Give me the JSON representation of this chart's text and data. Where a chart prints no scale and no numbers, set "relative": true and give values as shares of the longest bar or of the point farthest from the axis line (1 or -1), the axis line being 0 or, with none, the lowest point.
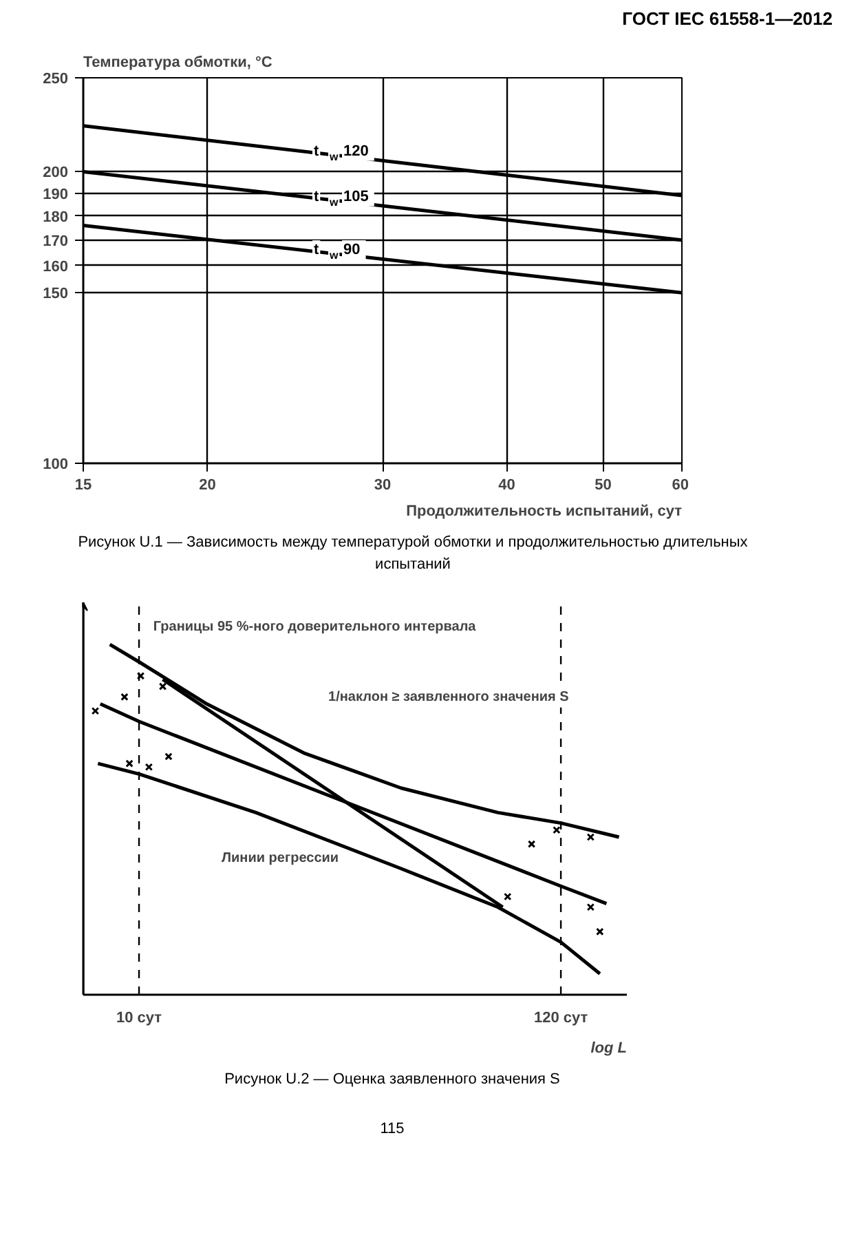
{
  "chart_data": [
    {
      "type": "line",
      "title": "ГОСТ IEC 61558-1—2012",
      "ylabel": "Температура обмотки, °C",
      "xlabel": "Продолжительность испытаний, сут",
      "log": "xy",
      "xlim": [
        15,
        60
      ],
      "ylim": [
        100,
        250
      ],
      "xticks": [
        15,
        20,
        30,
        40,
        50,
        60
      ],
      "yticks": [
        100,
        150,
        160,
        170,
        180,
        190,
        200,
        250
      ],
      "grid": true,
      "marker": "none",
      "line_style": "solid",
      "x": [
        15,
        60
      ],
      "series": [
        {
          "name": "t$_{w}$ 120",
          "color": "#000000",
          "values": [
            223,
            189
          ]
        },
        {
          "name": "t$_{w}$ 105",
          "color": "#000000",
          "values": [
            200,
            170
          ]
        },
        {
          "name": "t$_{w}$ 90",
          "color": "#000000",
          "values": [
            176,
            150
          ]
        }
      ],
      "annotations": [
        "Рисунок U.1 — Зависимость между температурой обмотки и продолжительностью длительных испытаний"
      ]
    },
    {
      "type": "line",
      "relative": true,
      "log": "x",
      "xlim": [
        7.2,
        177
      ],
      "xlabel": "log L",
      "xticks": [
        {
          "value": 10,
          "label": "10 сут"
        },
        {
          "value": 120,
          "label": "120 сут"
        }
      ],
      "tick_labels": "x",
      "grid": false,
      "series": [
        {
          "color": "#000000",
          "x": [
            8.42,
            10,
            14.9,
            26.4,
            46.8,
            82.8,
            120,
            169
          ],
          "values": [
            1.0,
            0.95,
            0.83,
            0.69,
            0.59,
            0.52,
            0.49,
            0.45
          ]
        },
        {
          "color": "#000000",
          "x": [
            7.96,
            10,
            120,
            157
          ],
          "values": [
            0.83,
            0.78,
            0.31,
            0.26
          ]
        },
        {
          "color": "#000000",
          "x": [
            7.85,
            10,
            19.9,
            46.8,
            82.8,
            120,
            151
          ],
          "values": [
            0.66,
            0.63,
            0.52,
            0.36,
            0.25,
            0.15,
            0.06
          ]
        },
        {
          "color": "#000000",
          "x": [
            11.5,
            85.2
          ],
          "values": [
            0.9,
            0.25
          ]
        },
        {
          "type": "scatter",
          "marker": "cross",
          "color": "#000000",
          "x": [
            7.73,
            9.18,
            10.1,
            11.5,
            9.45,
            10.6,
            11.9,
            101,
            117,
            143,
            87.7,
            143,
            151
          ],
          "values": [
            0.81,
            0.85,
            0.91,
            0.88,
            0.66,
            0.65,
            0.68,
            0.43,
            0.47,
            0.45,
            0.28,
            0.25,
            0.18
          ]
        }
      ],
      "ref_lines": [
        {
          "axis": "x",
          "value": 10,
          "line_style": "dashed",
          "color": "#000000"
        },
        {
          "axis": "x",
          "value": 120,
          "line_style": "dashed",
          "color": "#000000"
        }
      ],
      "annotations": [
        "Границы 95 %-ного доверительного интервала",
        "1/наклон ≥ заявленного значения S",
        "Линии регрессии",
        "Рисунок U.2 — Оценка заявленного значения S",
        "115"
      ]
    }
  ]
}
